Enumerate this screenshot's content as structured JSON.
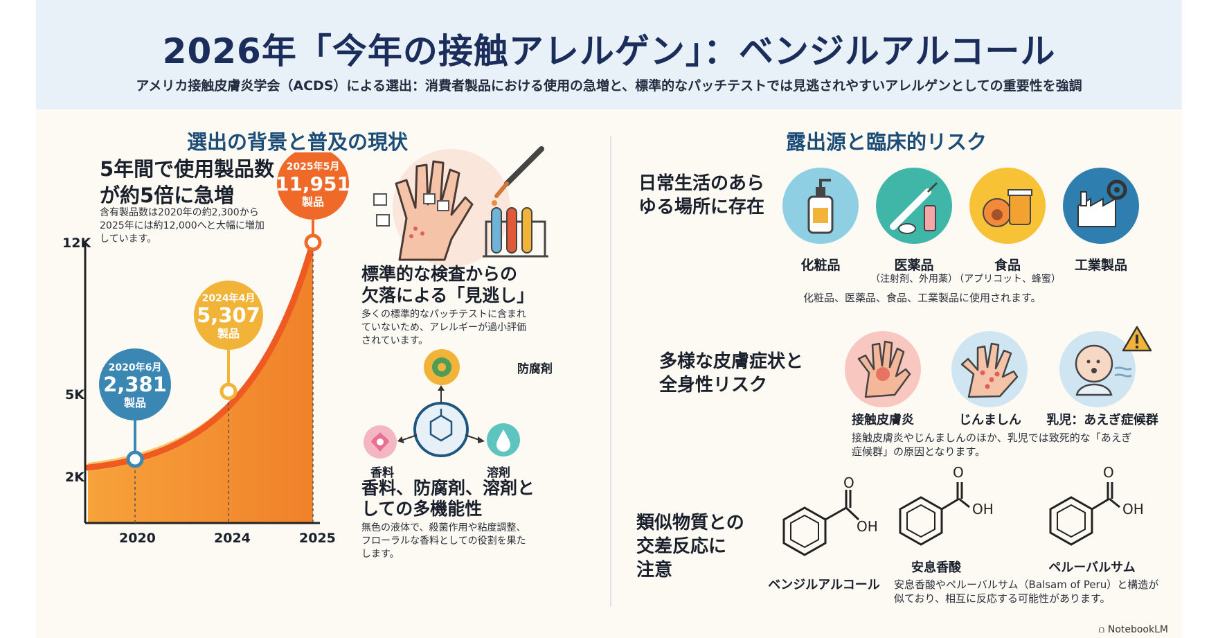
{
  "header": {
    "title": "2026年「今年の接触アレルゲン」：ベンジルアルコール",
    "subtitle": "アメリカ接触皮膚炎学会（ACDS）による選出：消費者製品における使用の急増と、標準的なパッチテストでは見逃されやすいアレルゲンとしての重要性を強調"
  },
  "left": {
    "title": "選出の背景と普及の現状",
    "growth_heading_1": "5年間で使用製品数",
    "growth_heading_2": "が約5倍に急増",
    "growth_desc_1": "含有製品数は2020年の約2,300から",
    "growth_desc_2": "2025年には約12,000へと大幅に増加",
    "growth_desc_3": "しています。",
    "missed_heading_1": "標準的な検査からの",
    "missed_heading_2": "欠落による「見逃し」",
    "missed_desc_1": "多くの標準的なパッチテストに含まれ",
    "missed_desc_2": "ていないため、アレルギーが過小評価",
    "missed_desc_3": "されています。",
    "func_preservative": "防腐剤",
    "func_fragrance": "香料",
    "func_solvent": "溶剤",
    "func_heading_1": "香料、防腐剤、溶剤と",
    "func_heading_2": "しての多機能性",
    "func_desc_1": "無色の液体で、殺菌作用や粘度調整、",
    "func_desc_2": "フローラルな香料としての役割を果た",
    "func_desc_3": "します。"
  },
  "chart_data": {
    "type": "area",
    "x": [
      "2020",
      "2024",
      "2025"
    ],
    "y_ticks": [
      "2K",
      "5K",
      "12K"
    ],
    "points": [
      {
        "label": "2020年6月",
        "value_text": "2,381",
        "unit": "製品",
        "value": 2381,
        "color": "#3b87b4"
      },
      {
        "label": "2024年4月",
        "value_text": "5,307",
        "unit": "製品",
        "value": 5307,
        "color": "#f2b438"
      },
      {
        "label": "2025年5月",
        "value_text": "11,951",
        "unit": "製品",
        "value": 11951,
        "color": "#ef6a28"
      }
    ]
  },
  "right": {
    "title": "露出源と臨床的リスク",
    "daily_heading_1": "日常生活のあら",
    "daily_heading_2": "ゆる場所に存在",
    "sources": [
      {
        "label": "化粧品",
        "sub": ""
      },
      {
        "label": "医薬品",
        "sub": "（注射剤、外用薬）"
      },
      {
        "label": "食品",
        "sub": "（アプリコット、蜂蜜）"
      },
      {
        "label": "工業製品",
        "sub": ""
      }
    ],
    "sources_desc": "化粧品、医薬品、食品、工業製品に使用されます。",
    "symptoms_heading_1": "多様な皮膚症状と",
    "symptoms_heading_2": "全身性リスク",
    "symptoms": [
      "接触皮膚炎",
      "じんましん",
      "乳児：あえぎ症候群"
    ],
    "symptoms_desc_1": "接触皮膚炎やじんましんのほか、乳児では致死的な「あえぎ",
    "symptoms_desc_2": "症候群」の原因となります。",
    "cross_heading_1": "類似物質との",
    "cross_heading_2": "交差反応に",
    "cross_heading_3": "注意",
    "substances": [
      "ベンジルアルコール",
      "安息香酸",
      "ペルーバルサム"
    ],
    "oh_label": "OH",
    "o_label": "O",
    "cross_desc_1": "安息香酸やペルーバルサム（Balsam of Peru）と構造が",
    "cross_desc_2": "似ており、相互に反応する可能性があります。"
  },
  "footer": {
    "logo": "NotebookLM"
  }
}
